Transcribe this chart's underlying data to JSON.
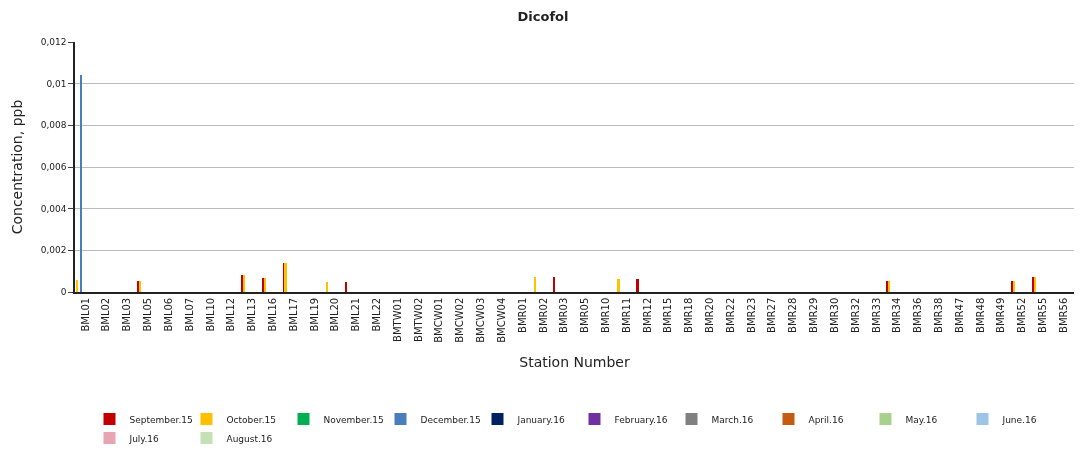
{
  "chart_data": {
    "type": "bar",
    "title": "Dicofol",
    "xlabel": "Station Number",
    "ylabel": "Concentration, ppb",
    "categories": [
      "BML01",
      "BML02",
      "BML03",
      "BML05",
      "BML06",
      "BML07",
      "BML10",
      "BML12",
      "BML13",
      "BML16",
      "BML17",
      "BML19",
      "BML20",
      "BML21",
      "BML22",
      "BMTW01",
      "BMTW02",
      "BMCW01",
      "BMCW02",
      "BMCW03",
      "BMCW04",
      "BMR01",
      "BMR02",
      "BMR03",
      "BMR05",
      "BMR10",
      "BMR11",
      "BMR12",
      "BMR15",
      "BMR18",
      "BMR20",
      "BMR22",
      "BMR23",
      "BMR27",
      "BMR28",
      "BMR29",
      "BMR30",
      "BMR32",
      "BMR33",
      "BMR34",
      "BMR36",
      "BMR38",
      "BMR47",
      "BMR48",
      "BMR49",
      "BMR52",
      "BMR55",
      "BMR56"
    ],
    "series": [
      {
        "name": "September.15",
        "color": "#c00000",
        "values": [
          0,
          0,
          0,
          0.00053,
          0,
          0,
          0,
          0,
          0.0008,
          0.00067,
          0.00141,
          0,
          0,
          0.0005,
          0,
          0,
          0,
          0,
          0,
          0,
          0,
          0,
          0,
          0.00074,
          0,
          0,
          0,
          0.00063,
          0,
          0,
          0,
          0,
          0,
          0,
          0,
          0,
          0,
          0,
          0,
          0.00052,
          0,
          0,
          0,
          0,
          0,
          0.00053,
          0.0007,
          0
        ]
      },
      {
        "name": "October.15",
        "color": "#ffc000",
        "values": [
          0.00057,
          0,
          0,
          0.00053,
          0,
          0,
          0,
          0,
          0.0008,
          0.00067,
          0.0014,
          0,
          0.0005,
          0,
          0,
          0,
          0,
          0,
          0,
          0,
          0,
          0,
          0.00074,
          0,
          0,
          0,
          0.00063,
          0,
          0,
          0,
          0,
          0,
          0,
          0,
          0,
          0,
          0,
          0,
          0,
          0.00052,
          0,
          0,
          0,
          0,
          0,
          0.00053,
          0.0007,
          0
        ]
      },
      {
        "name": "November.15",
        "color": "#00b050",
        "values": [
          0,
          0,
          0,
          0,
          0,
          0,
          0,
          0,
          0,
          0,
          0,
          0,
          0,
          0,
          0,
          0,
          0,
          0,
          0,
          0,
          0,
          0,
          0,
          0,
          0,
          0,
          0,
          0,
          0,
          0,
          0,
          0,
          0,
          0,
          0,
          0,
          0,
          0,
          0,
          0,
          0,
          0,
          0,
          0,
          0,
          0,
          0,
          0
        ]
      },
      {
        "name": "December.15",
        "color": "#4a7ebb",
        "values": [
          0.0104,
          0,
          0,
          0,
          0,
          0,
          0,
          0,
          0,
          0,
          0,
          0,
          0,
          0,
          0,
          0,
          0,
          0,
          0,
          0,
          0,
          0,
          0,
          0,
          0,
          0,
          0,
          0,
          0,
          0,
          0,
          0,
          0,
          0,
          0,
          0,
          0,
          0,
          0,
          0,
          0,
          0,
          0,
          0,
          0,
          0,
          0,
          0
        ]
      },
      {
        "name": "January.16",
        "color": "#002060",
        "values": [
          0,
          0,
          0,
          0,
          0,
          0,
          0,
          0,
          0,
          0,
          0,
          0,
          0,
          0,
          0,
          0,
          0,
          0,
          0,
          0,
          0,
          0,
          0,
          0,
          0,
          0,
          0,
          0,
          0,
          0,
          0,
          0,
          0,
          0,
          0,
          0,
          0,
          0,
          0,
          0,
          0,
          0,
          0,
          0,
          0,
          0,
          0,
          0
        ]
      },
      {
        "name": "February.16",
        "color": "#7030a0",
        "values": [
          0,
          0,
          0,
          0,
          0,
          0,
          0,
          0,
          0,
          0,
          0,
          0,
          0,
          0,
          0,
          0,
          0,
          0,
          0,
          0,
          0,
          0,
          0,
          0,
          0,
          0,
          0,
          0,
          0,
          0,
          0,
          0,
          0,
          0,
          0,
          0,
          0,
          0,
          0,
          0,
          0,
          0,
          0,
          0,
          0,
          0,
          0,
          0
        ]
      },
      {
        "name": "March.16",
        "color": "#808080",
        "values": [
          0,
          0,
          0,
          0,
          0,
          0,
          0,
          0,
          0,
          0,
          0,
          0,
          0,
          0,
          0,
          0,
          0,
          0,
          0,
          0,
          0,
          0,
          0,
          0,
          0,
          0,
          0,
          0,
          0,
          0,
          0,
          0,
          0,
          0,
          0,
          0,
          0,
          0,
          0,
          0,
          0,
          0,
          0,
          0,
          0,
          0,
          0,
          0
        ]
      },
      {
        "name": "April.16",
        "color": "#c55a11",
        "values": [
          0,
          0,
          0,
          0,
          0,
          0,
          0,
          0,
          0,
          0,
          0,
          0,
          0,
          0,
          0,
          0,
          0,
          0,
          0,
          0,
          0,
          0,
          0,
          0,
          0,
          0,
          0,
          0,
          0,
          0,
          0,
          0,
          0,
          0,
          0,
          0,
          0,
          0,
          0,
          0,
          0,
          0,
          0,
          0,
          0,
          0,
          0,
          0
        ]
      },
      {
        "name": "May.16",
        "color": "#a9d18e",
        "values": [
          0,
          0,
          0,
          0,
          0,
          0,
          0,
          0,
          0,
          0,
          0,
          0,
          0,
          0,
          0,
          0,
          0,
          0,
          0,
          0,
          0,
          0,
          0,
          0,
          0,
          0,
          0,
          0,
          0,
          0,
          0,
          0,
          0,
          0,
          0,
          0,
          0,
          0,
          0,
          0,
          0,
          0,
          0,
          0,
          0,
          0,
          0,
          0
        ]
      },
      {
        "name": "June.16",
        "color": "#9dc3e6",
        "values": [
          0,
          0,
          0,
          0,
          0,
          0,
          0,
          0,
          0,
          0,
          0,
          0,
          0,
          0,
          0,
          0,
          0,
          0,
          0,
          0,
          0,
          0,
          0,
          0,
          0,
          0,
          0,
          0,
          0,
          0,
          0,
          0,
          0,
          0,
          0,
          0,
          0,
          0,
          0,
          0,
          0,
          0,
          0,
          0,
          0,
          0,
          0,
          0
        ]
      },
      {
        "name": "July.16",
        "color": "#e6a5b0",
        "values": [
          0,
          0,
          0,
          0,
          0,
          0,
          0,
          0,
          0,
          0,
          0,
          0,
          0,
          0,
          0,
          0,
          0,
          0,
          0,
          0,
          0,
          0,
          0,
          0,
          0,
          0,
          0,
          0,
          0,
          0,
          0,
          0,
          0,
          0,
          0,
          0,
          0,
          0,
          0,
          0,
          0,
          0,
          0,
          0,
          0,
          0,
          0,
          0
        ]
      },
      {
        "name": "August.16",
        "color": "#c5e0b4",
        "values": [
          0,
          0,
          0,
          0,
          0,
          0,
          0,
          0,
          0,
          0,
          0,
          0,
          0,
          0,
          0,
          0,
          0,
          0,
          0,
          0,
          0,
          0,
          0,
          0,
          0,
          0,
          0,
          0,
          0,
          0,
          0,
          0,
          0,
          0,
          0,
          0,
          0,
          0,
          0,
          0,
          0,
          0,
          0,
          0,
          0,
          0,
          0,
          0
        ]
      }
    ],
    "ylim": [
      0,
      0.012
    ],
    "yticks": [
      {
        "value": 0,
        "label": "0"
      },
      {
        "value": 0.002,
        "label": "0,002"
      },
      {
        "value": 0.004,
        "label": "0,004"
      },
      {
        "value": 0.006,
        "label": "0,006"
      },
      {
        "value": 0.008,
        "label": "0,008"
      },
      {
        "value": 0.01,
        "label": "0,01"
      },
      {
        "value": 0.012,
        "label": "0,012"
      }
    ],
    "grid": "y",
    "legend": "bottom"
  }
}
